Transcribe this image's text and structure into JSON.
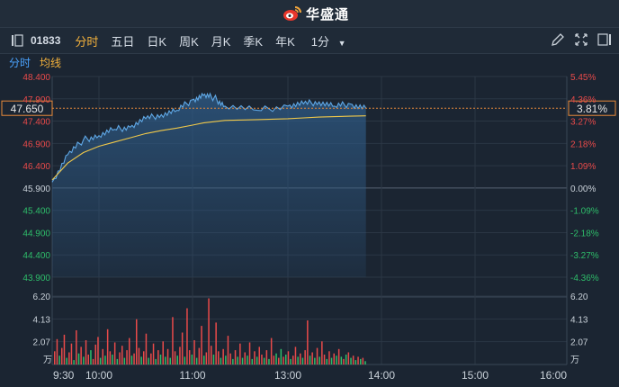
{
  "brand": {
    "name": "华盛通",
    "colors": {
      "logo": "#e8372c",
      "text": "#ffffff"
    }
  },
  "toolbar": {
    "code": "01833",
    "tabs": [
      {
        "label": "分时",
        "active": true
      },
      {
        "label": "五日",
        "active": false
      },
      {
        "label": "日K",
        "active": false
      },
      {
        "label": "周K",
        "active": false
      },
      {
        "label": "月K",
        "active": false
      },
      {
        "label": "季K",
        "active": false
      },
      {
        "label": "年K",
        "active": false
      }
    ],
    "interval": {
      "label": "1分"
    },
    "icons": [
      "sidebar-toggle-icon",
      "pencil-icon",
      "expand-icon",
      "fullscreen-icon"
    ]
  },
  "subtabs": [
    {
      "label": "分时",
      "color": "#4aa3ff"
    },
    {
      "label": "均线",
      "color": "#f3b13c"
    }
  ],
  "colors": {
    "up": "#e84a4a",
    "down": "#2ebd6a",
    "price": "#5fa8e6",
    "avg": "#f0c84a",
    "neutral": "#c9d1d9"
  },
  "price_badge": {
    "left": "47.650",
    "right": "3.81%"
  },
  "chart_data": [
    {
      "type": "line",
      "title": "",
      "y_left_ticks": [
        "48.400",
        "47.900",
        "47.400",
        "46.900",
        "46.400",
        "45.900",
        "45.400",
        "44.900",
        "44.400",
        "43.900"
      ],
      "y_right_ticks": [
        "5.45%",
        "4.36%",
        "3.27%",
        "2.18%",
        "1.09%",
        "0.00%",
        "-1.09%",
        "-2.18%",
        "-3.27%",
        "-4.36%"
      ],
      "x_ticks": [
        "9:30",
        "10:00",
        "11:00",
        "13:00",
        "14:00",
        "15:00",
        "16:00"
      ],
      "prev_close": 45.9,
      "ylim": [
        43.65,
        48.4
      ],
      "series": [
        {
          "name": "分时",
          "x": [
            "9:30",
            "9:40",
            "9:50",
            "10:00",
            "10:10",
            "10:20",
            "10:30",
            "10:40",
            "10:50",
            "11:00",
            "11:10",
            "11:20",
            "11:30",
            "12:00",
            "13:00",
            "13:10",
            "13:20",
            "13:30",
            "13:40",
            "13:50"
          ],
          "values": [
            45.9,
            46.55,
            46.9,
            47.0,
            47.15,
            47.2,
            47.4,
            47.5,
            47.6,
            47.85,
            47.95,
            47.9,
            47.7,
            47.6,
            47.7,
            47.75,
            47.8,
            47.7,
            47.75,
            47.65
          ]
        },
        {
          "name": "均线",
          "x": [
            "9:30",
            "9:40",
            "9:50",
            "10:00",
            "10:10",
            "10:20",
            "10:30",
            "10:40",
            "10:50",
            "11:00",
            "11:10",
            "11:20",
            "11:30",
            "12:00",
            "13:00",
            "13:10",
            "13:20",
            "13:30",
            "13:40",
            "13:50"
          ],
          "values": [
            45.95,
            46.35,
            46.6,
            46.75,
            46.85,
            46.95,
            47.05,
            47.12,
            47.18,
            47.25,
            47.3,
            47.33,
            47.36,
            47.38,
            47.4,
            47.42,
            47.44,
            47.45,
            47.46,
            47.47
          ]
        }
      ]
    },
    {
      "type": "bar",
      "title": "",
      "unit_label": "万",
      "y_ticks": [
        "6.20",
        "4.13",
        "2.07"
      ],
      "ylim": [
        0,
        6.2
      ],
      "values": [
        1.2,
        2.3,
        0.8,
        1.5,
        2.7,
        0.6,
        1.1,
        1.9,
        0.4,
        3.1,
        1.0,
        1.6,
        0.7,
        2.2,
        0.9,
        1.3,
        0.5,
        1.8,
        2.5,
        0.6,
        1.4,
        0.8,
        3.2,
        1.2,
        0.9,
        2.0,
        0.5,
        1.1,
        1.7,
        0.6,
        1.3,
        2.4,
        0.8,
        1.0,
        4.1,
        1.5,
        0.7,
        1.2,
        2.8,
        0.6,
        1.0,
        1.9,
        0.5,
        1.3,
        0.9,
        2.1,
        0.7,
        1.4,
        0.6,
        4.3,
        1.2,
        0.8,
        1.6,
        2.9,
        0.7,
        5.1,
        1.3,
        0.9,
        2.2,
        0.6,
        1.5,
        3.5,
        0.8,
        1.1,
        6.0,
        1.7,
        0.9,
        3.8,
        1.2,
        0.6,
        1.4,
        0.8,
        2.6,
        1.0,
        0.5,
        1.3,
        0.7,
        1.9,
        0.6,
        1.1,
        0.8,
        2.0,
        0.5,
        1.2,
        0.7,
        1.6,
        0.9,
        0.6,
        1.3,
        0.5,
        2.4,
        0.8,
        1.0,
        0.6,
        1.4,
        0.7,
        0.9,
        1.2,
        0.5,
        0.8,
        1.6,
        0.7,
        1.0,
        0.6,
        1.3,
        4.0,
        0.8,
        1.1,
        0.6,
        1.5,
        0.7,
        2.1,
        0.9,
        0.5,
        1.2,
        0.6,
        1.0,
        0.8,
        1.4,
        0.7,
        0.5,
        0.9,
        1.1,
        0.6,
        0.8,
        0.4,
        0.7,
        0.5,
        0.6,
        0.3
      ],
      "up_flags": [
        1,
        1,
        0,
        1,
        1,
        0,
        1,
        1,
        0,
        1,
        0,
        1,
        0,
        1,
        1,
        0,
        1,
        1,
        1,
        0,
        1,
        0,
        1,
        1,
        0,
        1,
        0,
        1,
        1,
        0,
        1,
        1,
        0,
        1,
        1,
        1,
        0,
        1,
        1,
        0,
        1,
        1,
        0,
        1,
        0,
        1,
        0,
        1,
        0,
        1,
        1,
        0,
        1,
        1,
        0,
        1,
        1,
        0,
        1,
        0,
        1,
        1,
        0,
        1,
        1,
        1,
        0,
        1,
        1,
        0,
        1,
        0,
        1,
        1,
        0,
        1,
        0,
        1,
        0,
        1,
        0,
        1,
        0,
        1,
        0,
        1,
        1,
        0,
        1,
        0,
        1,
        1,
        0,
        1,
        0,
        1,
        0,
        1,
        0,
        1,
        1,
        0,
        1,
        0,
        1,
        1,
        0,
        1,
        0,
        1,
        0,
        1,
        1,
        0,
        1,
        0,
        1,
        0,
        1,
        0,
        1,
        0,
        1,
        0,
        1,
        0,
        1,
        0,
        1,
        0
      ]
    }
  ]
}
